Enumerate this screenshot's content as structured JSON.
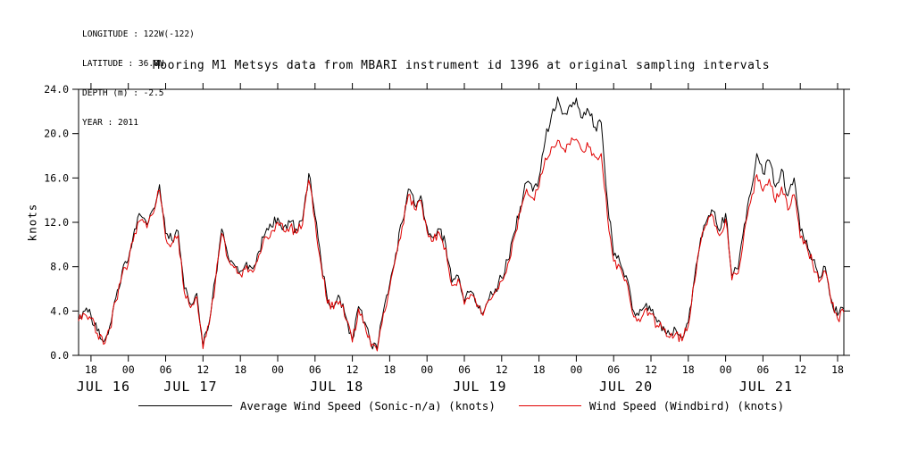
{
  "header_info": [
    "LONGITUDE : 122W(-122)",
    "LATITUDE : 36.8N",
    "DEPTH (m) : -2.5",
    "YEAR : 2011"
  ],
  "title": "Mooring M1 Metsys data from MBARI instrument id 1396 at original sampling intervals",
  "ylabel": "knots",
  "legend": [
    {
      "label": "Average Wind Speed (Sonic-n/a) (knots)",
      "color": "#000000"
    },
    {
      "label": "Wind Speed (Windbird) (knots)",
      "color": "#e00000"
    }
  ],
  "chart_data": {
    "type": "line",
    "title": "Mooring M1 Metsys data from MBARI instrument id 1396 at original sampling intervals",
    "xlabel": "",
    "ylabel": "knots",
    "ylim": [
      0,
      24
    ],
    "grid": false,
    "legend_position": "bottom",
    "time_start": "2011-07-16 16:00",
    "x_span_hours": 123,
    "x_unit": "hours since 2011-07-16 16:00 (hourly samples)",
    "noise_amplitude": 0.5,
    "y_ticks": [
      {
        "value": 0,
        "label": "0.0"
      },
      {
        "value": 4,
        "label": "4.0"
      },
      {
        "value": 8,
        "label": "8.0"
      },
      {
        "value": 12,
        "label": "12.0"
      },
      {
        "value": 16,
        "label": "16.0"
      },
      {
        "value": 20,
        "label": "20.0"
      },
      {
        "value": 24,
        "label": "24.0"
      }
    ],
    "x_ticks": [
      {
        "t": 2,
        "label": "18"
      },
      {
        "t": 8,
        "label": "00"
      },
      {
        "t": 14,
        "label": "06"
      },
      {
        "t": 20,
        "label": "12"
      },
      {
        "t": 26,
        "label": "18"
      },
      {
        "t": 32,
        "label": "00"
      },
      {
        "t": 38,
        "label": "06"
      },
      {
        "t": 44,
        "label": "12"
      },
      {
        "t": 50,
        "label": "18"
      },
      {
        "t": 56,
        "label": "00"
      },
      {
        "t": 62,
        "label": "06"
      },
      {
        "t": 68,
        "label": "12"
      },
      {
        "t": 74,
        "label": "18"
      },
      {
        "t": 80,
        "label": "00"
      },
      {
        "t": 86,
        "label": "06"
      },
      {
        "t": 92,
        "label": "12"
      },
      {
        "t": 98,
        "label": "18"
      },
      {
        "t": 104,
        "label": "00"
      },
      {
        "t": 110,
        "label": "06"
      },
      {
        "t": 116,
        "label": "12"
      },
      {
        "t": 122,
        "label": "18"
      }
    ],
    "day_labels": [
      {
        "t": 4,
        "label": "JUL 16"
      },
      {
        "t": 18,
        "label": "JUL 17"
      },
      {
        "t": 41.5,
        "label": "JUL 18"
      },
      {
        "t": 64.5,
        "label": "JUL 19"
      },
      {
        "t": 88,
        "label": "JUL 20"
      },
      {
        "t": 110.5,
        "label": "JUL 21"
      }
    ],
    "series": [
      {
        "name": "Average Wind Speed (Sonic-n/a) (knots)",
        "color": "#000000",
        "values": [
          3.3,
          4.0,
          3.6,
          2.2,
          1.2,
          2.6,
          5.2,
          7.6,
          8.6,
          11.4,
          12.6,
          11.8,
          13.2,
          15.4,
          11.0,
          10.4,
          11.2,
          6.0,
          4.6,
          5.6,
          0.8,
          3.0,
          7.0,
          11.4,
          9.0,
          8.2,
          7.6,
          8.4,
          7.8,
          9.4,
          11.0,
          11.6,
          12.4,
          11.6,
          12.0,
          11.4,
          12.2,
          16.4,
          12.6,
          8.4,
          5.0,
          4.4,
          5.2,
          3.4,
          1.4,
          4.4,
          3.0,
          1.0,
          0.6,
          4.0,
          6.4,
          9.2,
          12.0,
          15.0,
          13.6,
          14.4,
          11.6,
          10.6,
          11.4,
          10.0,
          6.6,
          7.2,
          4.8,
          5.8,
          4.6,
          3.8,
          5.2,
          6.0,
          7.0,
          8.6,
          11.0,
          13.4,
          15.6,
          14.8,
          16.0,
          19.4,
          21.6,
          23.3,
          21.8,
          22.6,
          23.2,
          21.4,
          22.0,
          20.6,
          21.0,
          14.0,
          9.0,
          8.4,
          7.2,
          4.2,
          3.6,
          4.4,
          4.0,
          3.0,
          2.6,
          1.9,
          2.3,
          1.6,
          3.0,
          7.0,
          10.6,
          12.2,
          13.0,
          11.2,
          12.8,
          7.2,
          7.8,
          11.8,
          14.6,
          18.2,
          16.4,
          17.6,
          15.2,
          16.8,
          14.4,
          16.0,
          11.2,
          10.4,
          8.6,
          7.0,
          8.0,
          5.0,
          3.6,
          4.2
        ]
      },
      {
        "name": "Wind Speed (Windbird) (knots)",
        "color": "#e00000",
        "values": [
          3.1,
          3.7,
          3.3,
          2.0,
          1.0,
          2.4,
          4.9,
          7.3,
          8.3,
          11.0,
          12.2,
          11.5,
          12.8,
          14.9,
          10.6,
          10.1,
          10.8,
          5.7,
          4.3,
          5.3,
          0.6,
          2.8,
          6.7,
          11.0,
          8.7,
          7.9,
          7.3,
          8.1,
          7.5,
          9.1,
          10.7,
          11.2,
          12.0,
          11.2,
          11.6,
          11.0,
          11.8,
          15.8,
          12.2,
          8.1,
          4.7,
          4.2,
          4.9,
          3.2,
          1.2,
          4.2,
          2.8,
          0.8,
          0.4,
          3.8,
          6.1,
          8.9,
          11.6,
          14.5,
          13.2,
          14.0,
          11.2,
          10.3,
          11.0,
          9.7,
          6.3,
          6.9,
          4.6,
          5.5,
          4.4,
          3.6,
          5.0,
          5.7,
          6.7,
          8.3,
          10.6,
          12.9,
          15.0,
          14.2,
          15.2,
          17.8,
          18.8,
          19.4,
          18.6,
          19.0,
          19.5,
          18.4,
          18.8,
          17.9,
          18.2,
          12.6,
          8.5,
          8.0,
          6.8,
          3.9,
          3.3,
          4.1,
          3.7,
          2.7,
          2.3,
          1.6,
          2.0,
          1.3,
          2.7,
          6.6,
          10.2,
          11.8,
          12.5,
          10.8,
          12.3,
          6.8,
          7.4,
          11.2,
          13.8,
          16.3,
          14.8,
          15.9,
          13.8,
          15.2,
          13.1,
          14.5,
          10.6,
          9.9,
          8.2,
          6.6,
          7.6,
          4.7,
          3.3,
          3.9
        ]
      }
    ]
  }
}
